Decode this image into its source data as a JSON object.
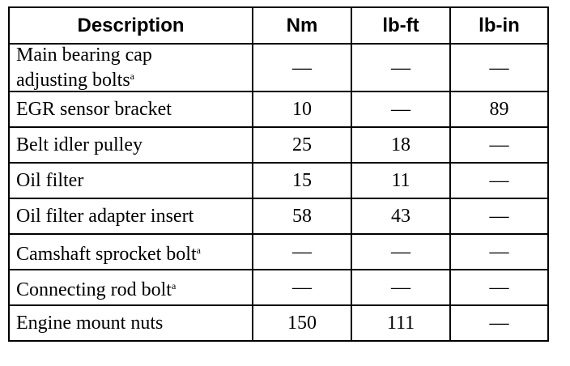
{
  "table": {
    "header": [
      "Description",
      "Nm",
      "lb-ft",
      "lb-in"
    ],
    "rows": [
      [
        {
          "text": "Main bearing cap adjusting bolts",
          "note": "a"
        },
        "—",
        "—",
        "—"
      ],
      [
        {
          "text": "EGR sensor bracket"
        },
        10,
        "—",
        89
      ],
      [
        {
          "text": "Belt idler pulley"
        },
        25,
        18,
        "—"
      ],
      [
        {
          "text": "Oil filter"
        },
        15,
        11,
        "—"
      ],
      [
        {
          "text": "Oil filter adapter insert"
        },
        58,
        43,
        "—"
      ],
      [
        {
          "text": "Camshaft sprocket bolt",
          "note": "a"
        },
        "—",
        "—",
        "—"
      ],
      [
        {
          "text": "Connecting rod bolt",
          "note": "a"
        },
        "—",
        "—",
        "—"
      ],
      [
        {
          "text": "Engine mount nuts"
        },
        150,
        111,
        "—"
      ]
    ]
  }
}
